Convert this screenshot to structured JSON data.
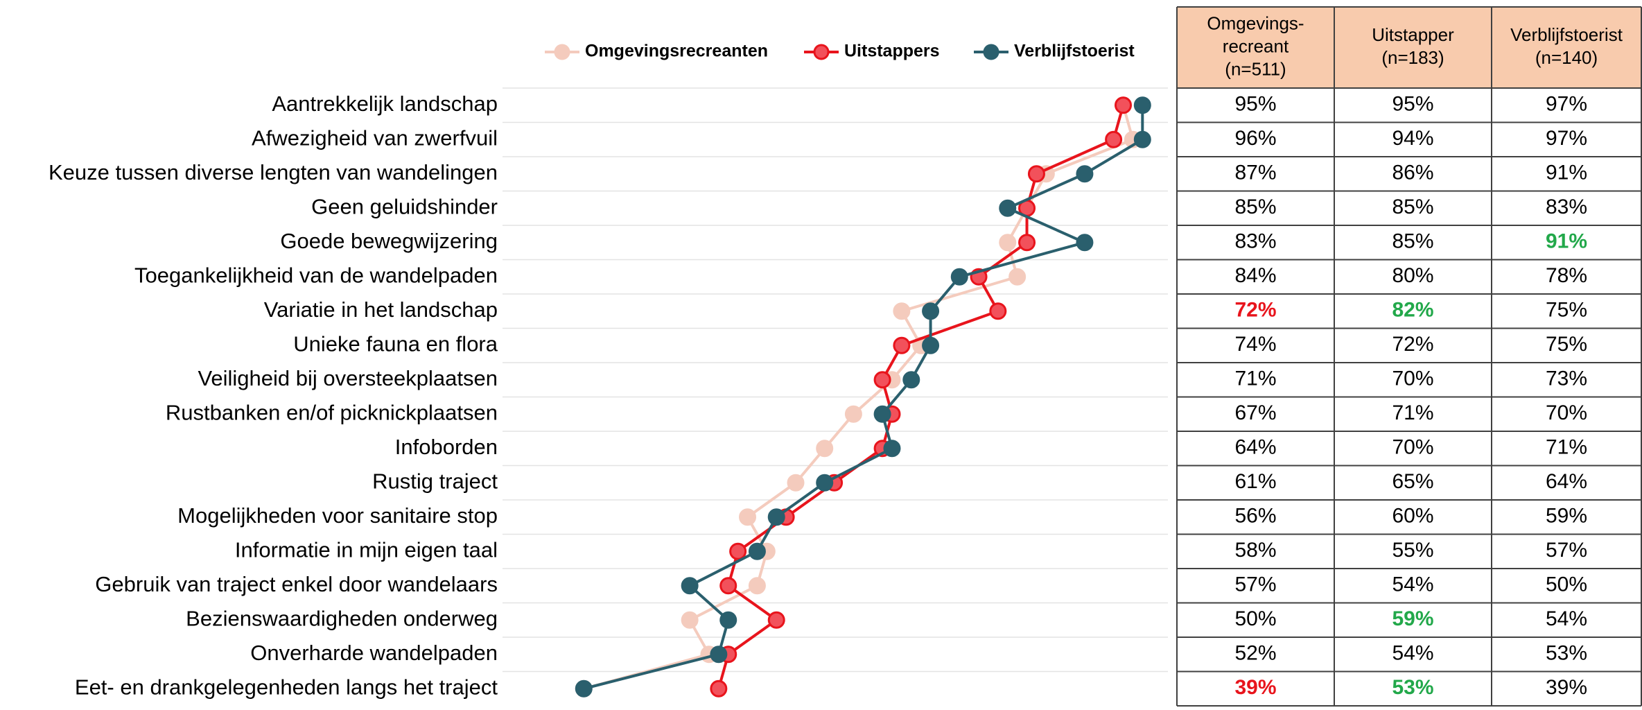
{
  "chart_data": {
    "type": "line",
    "orientation": "horizontal",
    "categories": [
      "Aantrekkelijk landschap",
      "Afwezigheid van zwerfvuil",
      "Keuze tussen diverse lengten van wandelingen",
      "Geen geluidshinder",
      "Goede bewegwijzering",
      "Toegankelijkheid van de wandelpaden",
      "Variatie in het landschap",
      "Unieke fauna en flora",
      "Veiligheid bij oversteekplaatsen",
      "Rustbanken en/of picknickplaatsen",
      "Infoborden",
      "Rustig traject",
      "Mogelijkheden voor sanitaire stop",
      "Informatie in mijn eigen taal",
      "Gebruik van traject enkel door wandelaars",
      "Bezienswaardigheden onderweg",
      "Onverharde wandelpaden",
      "Eet- en drankgelegenheden langs het traject"
    ],
    "xlim": [
      32,
      100
    ],
    "legend": "top",
    "series": [
      {
        "name": "Omgevingsrecreanten",
        "color": "#f4cbbd",
        "marker_stroke": "#f4cbbd",
        "values": [
          95,
          96,
          87,
          85,
          83,
          84,
          72,
          74,
          71,
          67,
          64,
          61,
          56,
          58,
          57,
          50,
          52,
          39
        ],
        "value_labels": [
          "95%",
          "96%",
          "87%",
          "85%",
          "83%",
          "84%",
          "72%",
          "74%",
          "71%",
          "67%",
          "64%",
          "61%",
          "56%",
          "58%",
          "57%",
          "50%",
          "52%",
          "39%"
        ],
        "label_colors": [
          null,
          null,
          null,
          null,
          null,
          null,
          "#e8141c",
          null,
          null,
          null,
          null,
          null,
          null,
          null,
          null,
          null,
          null,
          "#e8141c"
        ]
      },
      {
        "name": "Uitstappers",
        "color": "#e8141c",
        "marker_fill": "#f2515b",
        "values": [
          95,
          94,
          86,
          85,
          85,
          80,
          82,
          72,
          70,
          71,
          70,
          65,
          60,
          55,
          54,
          59,
          54,
          53
        ],
        "value_labels": [
          "95%",
          "94%",
          "86%",
          "85%",
          "85%",
          "80%",
          "82%",
          "72%",
          "70%",
          "71%",
          "70%",
          "65%",
          "60%",
          "55%",
          "54%",
          "59%",
          "54%",
          "53%"
        ],
        "label_colors": [
          null,
          null,
          null,
          null,
          null,
          null,
          "#22a84a",
          null,
          null,
          null,
          null,
          null,
          null,
          null,
          null,
          "#22a84a",
          null,
          "#22a84a"
        ]
      },
      {
        "name": "Verblijfstoerist",
        "color": "#2a5f6d",
        "values": [
          97,
          97,
          91,
          83,
          91,
          78,
          75,
          75,
          73,
          70,
          71,
          64,
          59,
          57,
          50,
          54,
          53,
          39
        ],
        "value_labels": [
          "97%",
          "97%",
          "91%",
          "83%",
          "91%",
          "78%",
          "75%",
          "75%",
          "73%",
          "70%",
          "71%",
          "64%",
          "59%",
          "57%",
          "50%",
          "54%",
          "53%",
          "39%"
        ],
        "label_colors": [
          null,
          null,
          null,
          null,
          "#22a84a",
          null,
          null,
          null,
          null,
          null,
          null,
          null,
          null,
          null,
          null,
          null,
          null,
          null
        ]
      }
    ],
    "table": {
      "header_color": "#f8cbad",
      "headers": [
        [
          "Omgevings-",
          "recreant",
          "(n=511)"
        ],
        [
          "Uitstapper",
          "(n=183)"
        ],
        [
          "Verblijfstoerist",
          "(n=140)"
        ]
      ]
    }
  }
}
